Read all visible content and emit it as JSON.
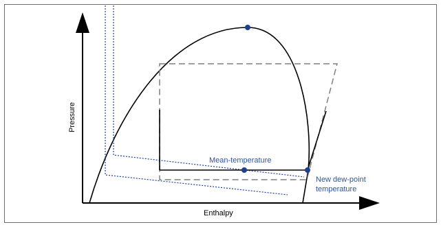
{
  "diagram": {
    "axis_labels": {
      "x": "Enthalpy",
      "y": "Pressure"
    },
    "annotations": {
      "mean_temperature": "Mean-temperature",
      "new_dew_point_line1": "New dew-point",
      "new_dew_point_line2": "temperature"
    },
    "colors": {
      "curve": "#000000",
      "annotation_text": "#2f5597",
      "dotted_lines": "#1f3f9f",
      "dashed_cycle": "#7f7f7f",
      "points": "#1f3f8f",
      "frame_border": "#6e6e6e"
    }
  }
}
